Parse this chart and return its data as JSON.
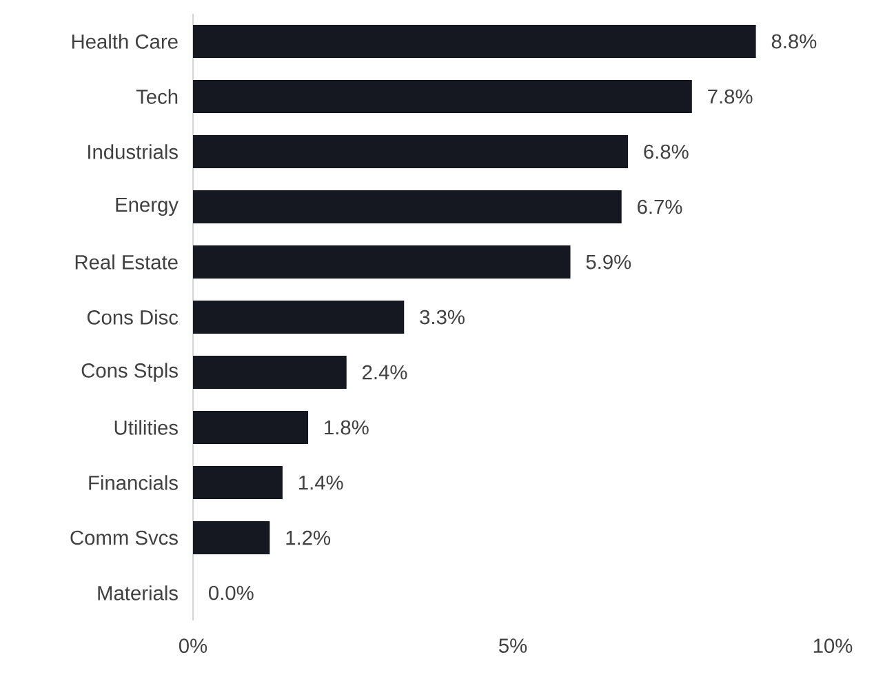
{
  "chart_data": {
    "type": "bar",
    "orientation": "horizontal",
    "categories": [
      "Health Care",
      "Tech",
      "Industrials",
      "Energy",
      "Real Estate",
      "Cons Disc",
      "Cons Stpls",
      "Utilities",
      "Financials",
      "Comm Svcs",
      "Materials"
    ],
    "values": [
      8.8,
      7.8,
      6.8,
      6.7,
      5.9,
      3.3,
      2.4,
      1.8,
      1.4,
      1.2,
      0.0
    ],
    "value_labels": [
      "8.8%",
      "7.8%",
      "6.8%",
      "6.7%",
      "5.9%",
      "3.3%",
      "2.4%",
      "1.8%",
      "1.4%",
      "1.2%",
      "0.0%"
    ],
    "color": "#151821",
    "xlim": [
      0,
      10
    ],
    "xticks": [
      {
        "value": 0,
        "label": "0%"
      },
      {
        "value": 5,
        "label": "5%"
      },
      {
        "value": 10,
        "label": "10%"
      }
    ]
  }
}
